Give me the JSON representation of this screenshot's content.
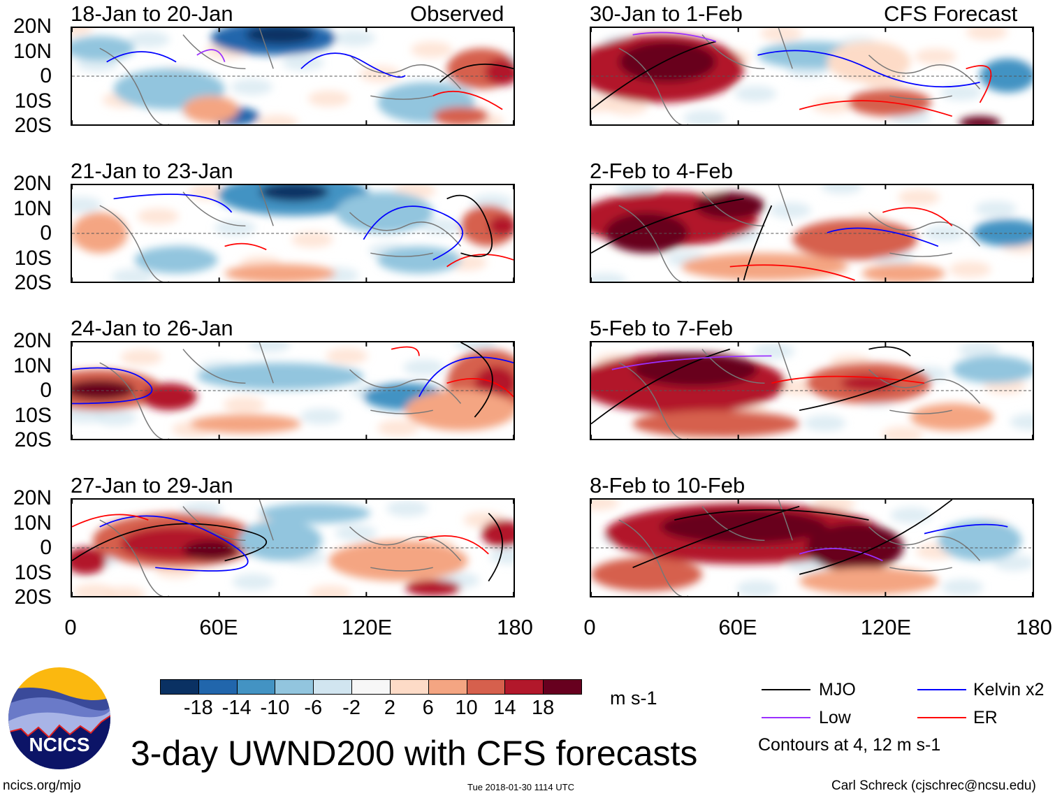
{
  "figure": {
    "title": "3-day UWND200 with CFS forecasts",
    "units": "m s-1",
    "website": "ncics.org/mjo",
    "timestamp": "Tue 2018-01-30 1114 UTC",
    "credit": "Carl Schreck (cjschrec@ncsu.edu)",
    "logo_text": "NCICS"
  },
  "columns": [
    {
      "label": "Observed"
    },
    {
      "label": "CFS Forecast"
    }
  ],
  "panels": [
    {
      "title": "18-Jan to 20-Jan"
    },
    {
      "title": "21-Jan to 23-Jan"
    },
    {
      "title": "24-Jan to 26-Jan"
    },
    {
      "title": "27-Jan to 29-Jan"
    },
    {
      "title": "30-Jan to 1-Feb"
    },
    {
      "title": "2-Feb to 4-Feb"
    },
    {
      "title": "5-Feb to 7-Feb"
    },
    {
      "title": "8-Feb to 10-Feb"
    }
  ],
  "lat_labels": [
    "20N",
    "10N",
    "0",
    "10S",
    "20S"
  ],
  "lon_labels": [
    "0",
    "60E",
    "120E",
    "180"
  ],
  "colorbar": {
    "labels": [
      "-18",
      "-14",
      "-10",
      "-6",
      "-2",
      "2",
      "6",
      "10",
      "14",
      "18"
    ],
    "colors": [
      "#0a3163",
      "#2166ac",
      "#4393c3",
      "#92c5de",
      "#d1e5f0",
      "#f7f7f7",
      "#fddbc7",
      "#f4a582",
      "#d6604d",
      "#b2182b",
      "#67001f"
    ]
  },
  "legend": {
    "items": [
      {
        "label": "MJO",
        "color": "#000000"
      },
      {
        "label": "Low",
        "color": "#9b30ff"
      },
      {
        "label": "Kelvin x2",
        "color": "#0000ff"
      },
      {
        "label": "ER",
        "color": "#ff0000"
      }
    ],
    "contours_note": "Contours at 4, 12 m s-1"
  }
}
